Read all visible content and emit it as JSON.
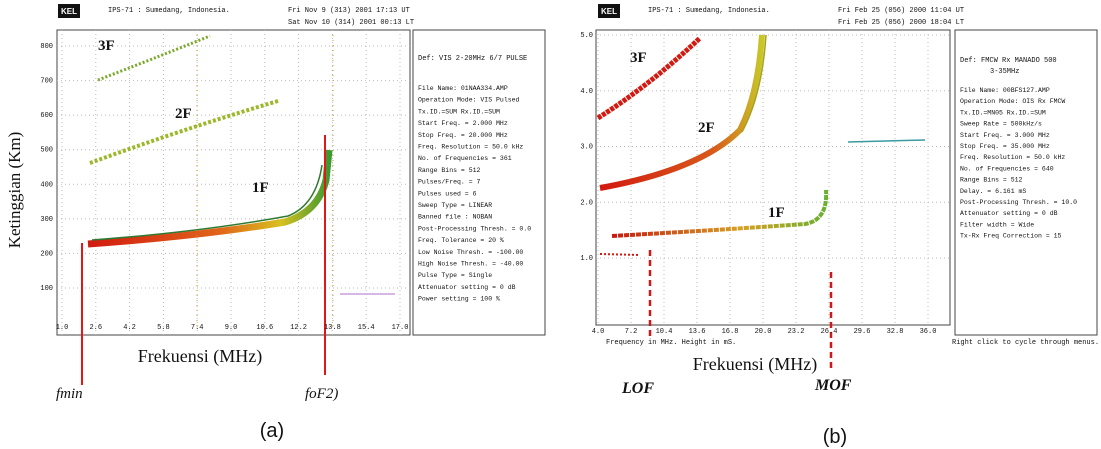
{
  "panel_a": {
    "header": {
      "logo": "KEL",
      "site": "IPS-71 : Sumedang, Indonesia.",
      "time_ut": "Fri Nov  9 (313) 2001 17:13 UT",
      "time_lt": "Sat Nov 10 (314) 2001 00:13 LT"
    },
    "y_ticks": [
      "800",
      "700",
      "600",
      "500",
      "400",
      "300",
      "200",
      "100"
    ],
    "x_ticks": [
      "1.0",
      "2.6",
      "4.2",
      "5.8",
      "7.4",
      "9.0",
      "10.6",
      "12.2",
      "13.8",
      "15.4",
      "17.0"
    ],
    "trace_labels": [
      "3F",
      "2F",
      "1F"
    ],
    "definition": "Def: VIS 2-20MHz 6/7 PULSE",
    "settings": [
      "File Name: 01NAA334.AMP",
      "Operation Mode: VIS Pulsed",
      "Tx.ID.=SUM Rx.ID.=SUM",
      "Start Freq. =  2.000 MHz",
      "Stop Freq. = 20.000 MHz",
      "Freq. Resolution =  50.0 kHz",
      "No. of Frequencies = 361",
      "Range Bins = 512",
      "Pulses/Freq. = 7",
      "Pulses used = 6",
      "Sweep Type = LINEAR",
      "Banned file : NOBAN",
      "Post-Processing Thresh. =  0.0",
      "Freq. Tolerance = 20 %",
      "Low Noise Thresh. = -100.00",
      "High Noise Thresh. = -40.00",
      "Pulse Type = Single",
      "Attenuator setting = 0 dB",
      "Power setting = 100 %"
    ],
    "y_axis_label": "Ketinggian (Km)",
    "x_axis_label": "Frekuensi (MHz)",
    "marker_left": "fmin",
    "marker_right": "foF2)",
    "caption": "(a)"
  },
  "panel_b": {
    "header": {
      "logo": "KEL",
      "site": "IPS-71 : Sumedang, Indonesia.",
      "time_ut": "Fri Feb 25 (056) 2000 11:04 UT",
      "time_lt": "Fri Feb 25 (056) 2000 18:04 LT"
    },
    "y_ticks": [
      "5.0",
      "4.0",
      "3.0",
      "2.0",
      "1.0"
    ],
    "x_ticks": [
      "4.0",
      "7.2",
      "10.4",
      "13.6",
      "16.8",
      "20.0",
      "23.2",
      "26.4",
      "29.6",
      "32.8",
      "36.0"
    ],
    "trace_labels": [
      "3F",
      "2F",
      "1F"
    ],
    "definition": [
      "Def: FMCW Rx MANADO 500",
      "3-35MHz"
    ],
    "settings": [
      "File Name: 00BFS127.AMP",
      "Operation Mode: OIS Rx FMCW",
      "Tx.ID.=MN05 Rx.ID.=SUM",
      "Sweep Rate = 500kHz/s",
      "Start Freq. =  3.000 MHz",
      "Stop Freq. = 35.000 MHz",
      "Freq. Resolution =  50.0 kHz",
      "No. of Frequencies = 640",
      "Range Bins = 512",
      "Delay. =  6.161 mS",
      "Post-Processing Thresh. = 10.0",
      "Attenuator setting = 0 dB",
      "Filter width = Wide",
      "Tx-Rx Freq Correction = 15"
    ],
    "footer_left": "Frequency in MHz. Height in mS.",
    "footer_right": "Right click to cycle through menus.",
    "x_axis_label": "Frekuensi (MHz)",
    "marker_left": "LOF",
    "marker_right": "MOF",
    "caption": "(b)"
  }
}
